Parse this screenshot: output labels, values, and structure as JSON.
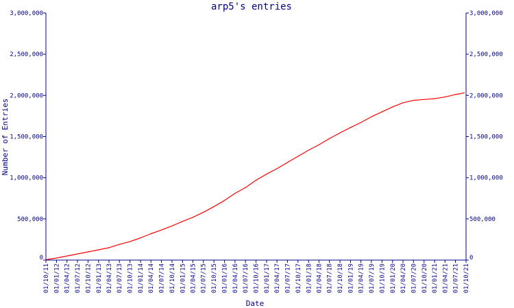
{
  "chart_data": {
    "type": "line",
    "title": "arp5's entries",
    "xlabel": "Date",
    "ylabel": "Number of Entries",
    "x_type": "date",
    "xlim": [
      "2011-10-01",
      "2021-10-01"
    ],
    "ylim": [
      0,
      3000000
    ],
    "y_ticks": [
      0,
      500000,
      1000000,
      1500000,
      2000000,
      2500000,
      3000000
    ],
    "y_tick_labels": [
      "0",
      "500,000",
      "1,000,000",
      "1,500,000",
      "2,000,000",
      "2,500,000",
      "3,000,000"
    ],
    "x_ticks": [
      "2011-10-01",
      "2012-01-01",
      "2012-04-01",
      "2012-07-01",
      "2012-10-01",
      "2013-01-01",
      "2013-04-01",
      "2013-07-01",
      "2013-10-01",
      "2014-01-01",
      "2014-04-01",
      "2014-07-01",
      "2014-10-01",
      "2015-01-01",
      "2015-04-01",
      "2015-07-01",
      "2015-10-01",
      "2016-01-01",
      "2016-04-01",
      "2016-07-01",
      "2016-10-01",
      "2017-01-01",
      "2017-04-01",
      "2017-07-01",
      "2017-10-01",
      "2018-01-01",
      "2018-04-01",
      "2018-07-01",
      "2018-10-01",
      "2019-01-01",
      "2019-04-01",
      "2019-07-01",
      "2019-10-01",
      "2020-01-01",
      "2020-04-01",
      "2020-07-01",
      "2020-10-01",
      "2021-01-01",
      "2021-04-01",
      "2021-07-01",
      "2021-10-01"
    ],
    "x_tick_labels": [
      "01/10/11",
      "01/01/12",
      "01/04/12",
      "01/07/12",
      "01/10/12",
      "01/01/13",
      "01/04/13",
      "01/07/13",
      "01/10/13",
      "01/01/14",
      "01/04/14",
      "01/07/14",
      "01/10/14",
      "01/01/15",
      "01/04/15",
      "01/07/15",
      "01/10/15",
      "01/01/16",
      "01/04/16",
      "01/07/16",
      "01/10/16",
      "01/01/17",
      "01/04/17",
      "01/07/17",
      "01/10/17",
      "01/01/18",
      "01/04/18",
      "01/07/18",
      "01/10/18",
      "01/01/19",
      "01/04/19",
      "01/07/19",
      "01/10/19",
      "01/01/20",
      "01/04/20",
      "01/07/20",
      "01/10/20",
      "01/01/21",
      "01/04/21",
      "01/07/21",
      "01/10/21"
    ],
    "grid": false,
    "right_axis": true,
    "series": [
      {
        "color": "#ff0000",
        "x": [
          "2011-10-01",
          "2012-01-01",
          "2012-04-01",
          "2012-07-01",
          "2012-10-01",
          "2013-01-01",
          "2013-04-01",
          "2013-07-01",
          "2013-10-01",
          "2014-01-01",
          "2014-04-01",
          "2014-07-01",
          "2014-10-01",
          "2015-01-01",
          "2015-04-01",
          "2015-07-01",
          "2015-10-01",
          "2016-01-01",
          "2016-04-01",
          "2016-07-01",
          "2016-10-01",
          "2017-01-01",
          "2017-04-01",
          "2017-07-01",
          "2017-10-01",
          "2018-01-01",
          "2018-04-01",
          "2018-07-01",
          "2018-10-01",
          "2019-01-01",
          "2019-04-01",
          "2019-07-01",
          "2019-10-01",
          "2020-01-01",
          "2020-04-01",
          "2020-07-01",
          "2020-10-01",
          "2021-01-01",
          "2021-04-01",
          "2021-07-01",
          "2021-09-15"
        ],
        "y": [
          5000,
          25000,
          50000,
          75000,
          100000,
          125000,
          150000,
          190000,
          225000,
          270000,
          320000,
          365000,
          415000,
          470000,
          520000,
          580000,
          650000,
          725000,
          810000,
          880000,
          970000,
          1045000,
          1110000,
          1185000,
          1260000,
          1335000,
          1400000,
          1475000,
          1545000,
          1610000,
          1670000,
          1740000,
          1800000,
          1860000,
          1910000,
          1940000,
          1950000,
          1960000,
          1980000,
          2010000,
          2030000
        ]
      }
    ]
  }
}
